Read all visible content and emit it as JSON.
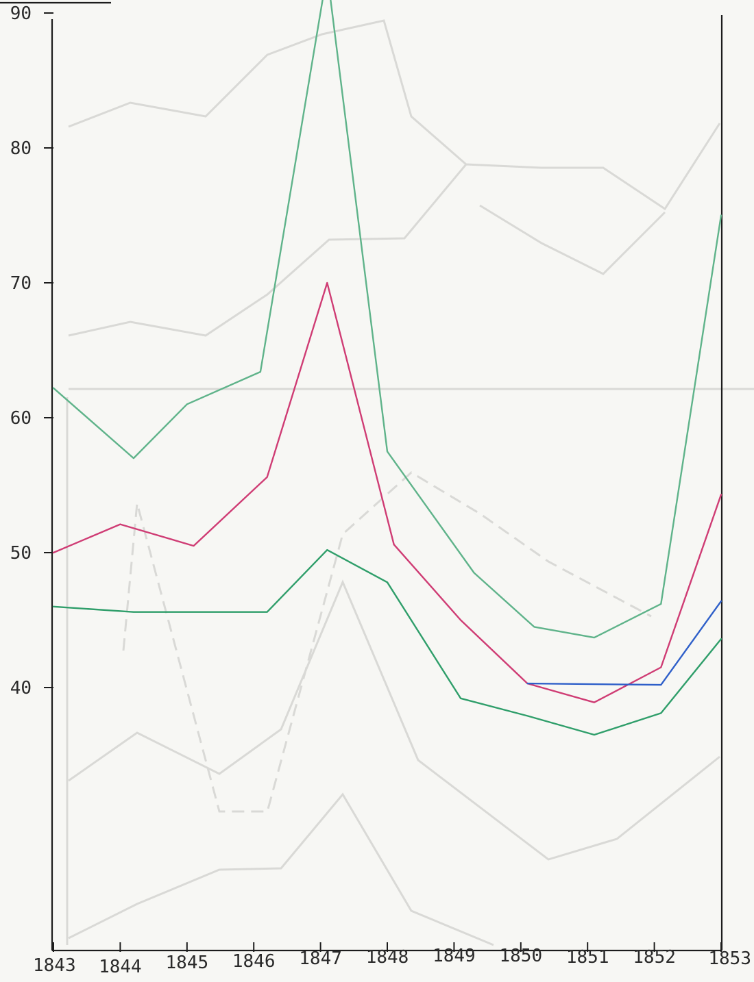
{
  "chart_data": {
    "type": "line",
    "title": "",
    "xlabel": "",
    "ylabel": "",
    "x": [
      "1843",
      "1844",
      "1845",
      "1846",
      "1847",
      "1848",
      "1849",
      "1850",
      "1851",
      "1852",
      "1853"
    ],
    "ylim": [
      31,
      90
    ],
    "yticks": [
      40,
      50,
      60,
      70,
      80,
      90
    ],
    "grid": false,
    "legend": "none",
    "series": [
      {
        "color": "#5fb38a",
        "points": [
          [
            1843.0,
            62.2
          ],
          [
            1844.2,
            57.0
          ],
          [
            1845.0,
            61.0
          ],
          [
            1846.1,
            63.4
          ],
          [
            1847.1,
            93.0
          ],
          [
            1848.0,
            57.5
          ],
          [
            1849.3,
            48.5
          ],
          [
            1850.2,
            44.5
          ],
          [
            1851.1,
            43.7
          ],
          [
            1852.1,
            46.2
          ],
          [
            1853.0,
            75.0
          ]
        ]
      },
      {
        "color": "#cf3c74",
        "points": [
          [
            1843.0,
            50.0
          ],
          [
            1844.0,
            52.1
          ],
          [
            1845.1,
            50.5
          ],
          [
            1846.2,
            55.6
          ],
          [
            1847.1,
            70.0
          ],
          [
            1848.1,
            50.6
          ],
          [
            1849.1,
            45.0
          ],
          [
            1850.1,
            40.3
          ],
          [
            1851.1,
            38.9
          ],
          [
            1852.1,
            41.5
          ],
          [
            1853.0,
            54.3
          ]
        ]
      },
      {
        "color": "#2f9e6a",
        "points": [
          [
            1843.0,
            46.0
          ],
          [
            1844.2,
            45.6
          ],
          [
            1846.2,
            45.6
          ],
          [
            1847.1,
            50.2
          ],
          [
            1848.0,
            47.8
          ],
          [
            1849.1,
            39.2
          ],
          [
            1850.1,
            37.9
          ],
          [
            1851.1,
            36.5
          ],
          [
            1852.1,
            38.1
          ],
          [
            1853.0,
            43.6
          ]
        ]
      },
      {
        "color": "#2e5fc9",
        "points": [
          [
            1850.1,
            40.3
          ],
          [
            1852.1,
            40.2
          ],
          [
            1853.0,
            46.4
          ]
        ]
      }
    ]
  }
}
